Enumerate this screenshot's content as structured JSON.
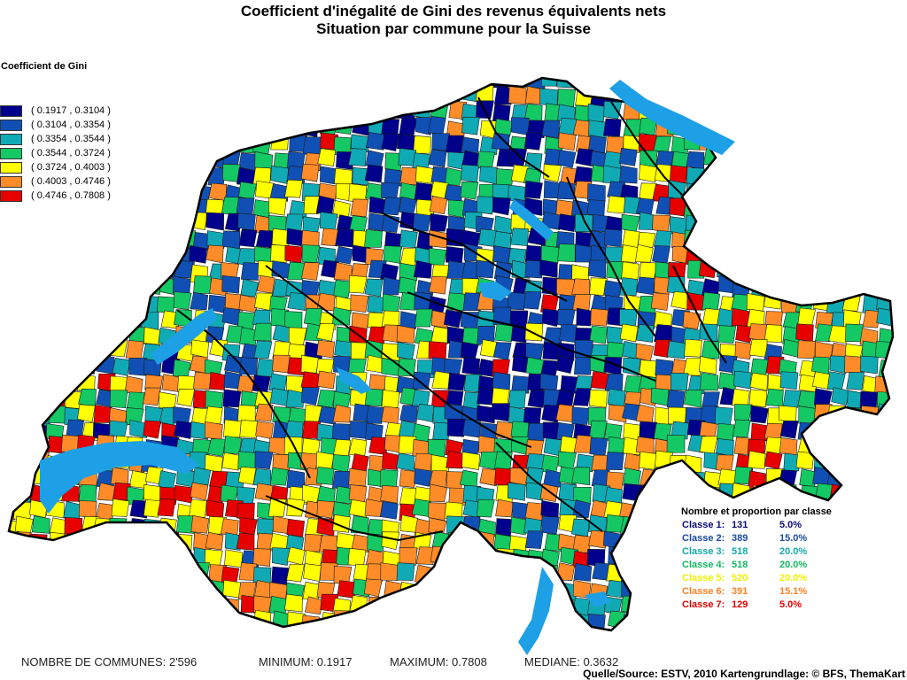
{
  "title": {
    "line1": "Coefficient d'inégalité de Gini des revenus équivalents nets",
    "line2": "Situation par commune pour la Suisse"
  },
  "legend": {
    "title": "Coefficient de Gini",
    "classes": [
      {
        "range": "( 0.1917 , 0.3104 )",
        "color": "#00008c"
      },
      {
        "range": "( 0.3104 , 0.3354 )",
        "color": "#1050b4"
      },
      {
        "range": "( 0.3354 , 0.3544 )",
        "color": "#10aab4"
      },
      {
        "range": "( 0.3544 , 0.3724 )",
        "color": "#14c864"
      },
      {
        "range": "( 0.3724 , 0.4003 )",
        "color": "#ffff00"
      },
      {
        "range": "( 0.4003 , 0.4746 )",
        "color": "#ff8c28"
      },
      {
        "range": "( 0.4746 , 0.7808 )",
        "color": "#e60000"
      }
    ]
  },
  "class_summary": {
    "title": "Nombre et proportion par classe",
    "rows": [
      {
        "label": "Classe 1:",
        "count": "131",
        "pct": "5.0%",
        "color": "#0a0a78"
      },
      {
        "label": "Classe 2:",
        "count": "389",
        "pct": "15.0%",
        "color": "#1a4ca0"
      },
      {
        "label": "Classe 3:",
        "count": "518",
        "pct": "20.0%",
        "color": "#12a8a8"
      },
      {
        "label": "Classe 4:",
        "count": "518",
        "pct": "20.0%",
        "color": "#10b860"
      },
      {
        "label": "Classe 5:",
        "count": "520",
        "pct": "20.0%",
        "color": "#f0f000"
      },
      {
        "label": "Classe 6:",
        "count": "391",
        "pct": "15.1%",
        "color": "#ff8020"
      },
      {
        "label": "Classe 7:",
        "count": "129",
        "pct": "5.0%",
        "color": "#e00000"
      }
    ]
  },
  "stats": {
    "communes": "NOMBRE DE COMMUNES: 2'596",
    "minimum": "MINIMUM: 0.1917",
    "maximum": "MAXIMUM: 0.7808",
    "median": "MEDIANE: 0.3632"
  },
  "source": "Quelle/Source: ESTV, 2010 Kartengrundlage: © BFS, ThemaKart",
  "map_colors": {
    "lake": "#1ea0e6",
    "border": "#000000"
  }
}
